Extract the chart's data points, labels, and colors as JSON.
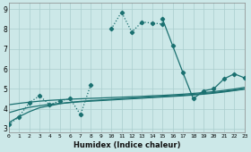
{
  "xlabel": "Humidex (Indice chaleur)",
  "x": [
    0,
    1,
    2,
    3,
    4,
    5,
    6,
    7,
    8,
    9,
    10,
    11,
    12,
    13,
    14,
    15,
    16,
    17,
    18,
    19,
    20,
    21,
    22,
    23
  ],
  "line1": [
    3.2,
    3.6,
    4.3,
    4.65,
    4.2,
    4.4,
    4.5,
    3.7,
    5.2,
    null,
    8.0,
    8.85,
    7.85,
    8.35,
    8.3,
    8.25,
    null,
    null,
    null,
    null,
    null,
    null,
    null,
    null
  ],
  "line2": [
    null,
    null,
    null,
    null,
    null,
    null,
    null,
    null,
    null,
    null,
    null,
    null,
    null,
    null,
    null,
    8.5,
    7.15,
    5.8,
    4.5,
    4.9,
    5.0,
    5.5,
    5.75,
    5.55
  ],
  "line3_reg": [
    3.3,
    3.6,
    3.85,
    4.05,
    4.15,
    4.25,
    4.32,
    4.37,
    4.41,
    4.44,
    4.47,
    4.5,
    4.53,
    4.56,
    4.59,
    4.62,
    4.65,
    4.68,
    4.72,
    4.76,
    4.81,
    4.87,
    4.93,
    5.0
  ],
  "line4_reg": [
    3.8,
    3.95,
    4.07,
    4.15,
    4.22,
    4.27,
    4.31,
    4.35,
    4.38,
    4.41,
    4.44,
    4.47,
    4.5,
    4.53,
    4.56,
    4.59,
    4.62,
    4.65,
    4.69,
    4.73,
    4.78,
    4.84,
    4.91,
    4.98
  ],
  "line5_reg": [
    4.2,
    4.27,
    4.33,
    4.38,
    4.42,
    4.45,
    4.48,
    4.5,
    4.52,
    4.54,
    4.56,
    4.58,
    4.6,
    4.62,
    4.65,
    4.67,
    4.7,
    4.73,
    4.77,
    4.81,
    4.86,
    4.92,
    4.99,
    5.07
  ],
  "bg_color": "#cce8e8",
  "line_color": "#1a7070",
  "grid_color": "#aacece",
  "ylim": [
    2.8,
    9.3
  ],
  "xlim": [
    0,
    23
  ],
  "yticks": [
    3,
    4,
    5,
    6,
    7,
    8,
    9
  ],
  "xticks": [
    0,
    1,
    2,
    3,
    4,
    5,
    6,
    7,
    8,
    9,
    10,
    11,
    12,
    13,
    14,
    15,
    16,
    17,
    18,
    19,
    20,
    21,
    22,
    23
  ]
}
